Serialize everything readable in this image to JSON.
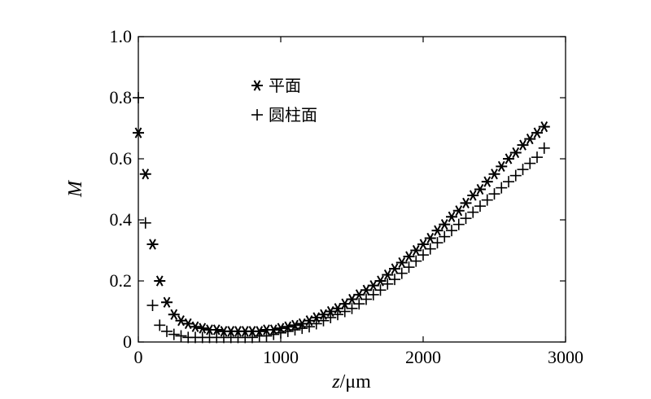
{
  "chart_data": {
    "type": "scatter",
    "xlabel_var": "z",
    "xlabel_unit": "/μm",
    "ylabel": "M",
    "xlim": [
      0,
      3000
    ],
    "ylim": [
      0,
      1.0
    ],
    "x_ticks": [
      "0",
      "1000",
      "2000",
      "3000"
    ],
    "y_ticks": [
      "0",
      "0.2",
      "0.4",
      "0.6",
      "0.8",
      "1.0"
    ],
    "grid": false,
    "legend_position": "top-left",
    "series": [
      {
        "name": "平面",
        "marker": "asterisk",
        "x": [
          0,
          50,
          100,
          150,
          200,
          250,
          300,
          350,
          400,
          450,
          500,
          550,
          600,
          650,
          700,
          750,
          800,
          850,
          900,
          950,
          1000,
          1050,
          1100,
          1150,
          1200,
          1250,
          1300,
          1350,
          1400,
          1450,
          1500,
          1550,
          1600,
          1650,
          1700,
          1750,
          1800,
          1850,
          1900,
          1950,
          2000,
          2050,
          2100,
          2150,
          2200,
          2250,
          2300,
          2350,
          2400,
          2450,
          2500,
          2550,
          2600,
          2650,
          2700,
          2750,
          2800,
          2850
        ],
        "values": [
          0.685,
          0.55,
          0.32,
          0.2,
          0.13,
          0.09,
          0.07,
          0.06,
          0.05,
          0.045,
          0.04,
          0.04,
          0.035,
          0.035,
          0.035,
          0.035,
          0.035,
          0.035,
          0.04,
          0.04,
          0.045,
          0.05,
          0.055,
          0.06,
          0.07,
          0.08,
          0.09,
          0.1,
          0.11,
          0.125,
          0.14,
          0.155,
          0.17,
          0.185,
          0.2,
          0.22,
          0.24,
          0.26,
          0.28,
          0.3,
          0.32,
          0.34,
          0.365,
          0.385,
          0.41,
          0.43,
          0.455,
          0.48,
          0.5,
          0.525,
          0.55,
          0.575,
          0.6,
          0.62,
          0.645,
          0.665,
          0.685,
          0.705
        ]
      },
      {
        "name": "圆柱面",
        "marker": "plus",
        "x": [
          0,
          50,
          100,
          150,
          200,
          250,
          300,
          350,
          400,
          450,
          500,
          550,
          600,
          650,
          700,
          750,
          800,
          850,
          900,
          950,
          1000,
          1050,
          1100,
          1150,
          1200,
          1250,
          1300,
          1350,
          1400,
          1450,
          1500,
          1550,
          1600,
          1650,
          1700,
          1750,
          1800,
          1850,
          1900,
          1950,
          2000,
          2050,
          2100,
          2150,
          2200,
          2250,
          2300,
          2350,
          2400,
          2450,
          2500,
          2550,
          2600,
          2650,
          2700,
          2750,
          2800,
          2850
        ],
        "values": [
          0.8,
          0.39,
          0.12,
          0.055,
          0.035,
          0.025,
          0.02,
          0.015,
          0.015,
          0.015,
          0.015,
          0.015,
          0.015,
          0.015,
          0.015,
          0.015,
          0.015,
          0.02,
          0.02,
          0.025,
          0.03,
          0.035,
          0.04,
          0.045,
          0.05,
          0.06,
          0.07,
          0.08,
          0.09,
          0.1,
          0.11,
          0.125,
          0.14,
          0.155,
          0.17,
          0.19,
          0.205,
          0.225,
          0.245,
          0.265,
          0.285,
          0.305,
          0.325,
          0.345,
          0.365,
          0.385,
          0.405,
          0.425,
          0.445,
          0.465,
          0.485,
          0.505,
          0.525,
          0.545,
          0.565,
          0.585,
          0.605,
          0.635
        ]
      }
    ]
  }
}
